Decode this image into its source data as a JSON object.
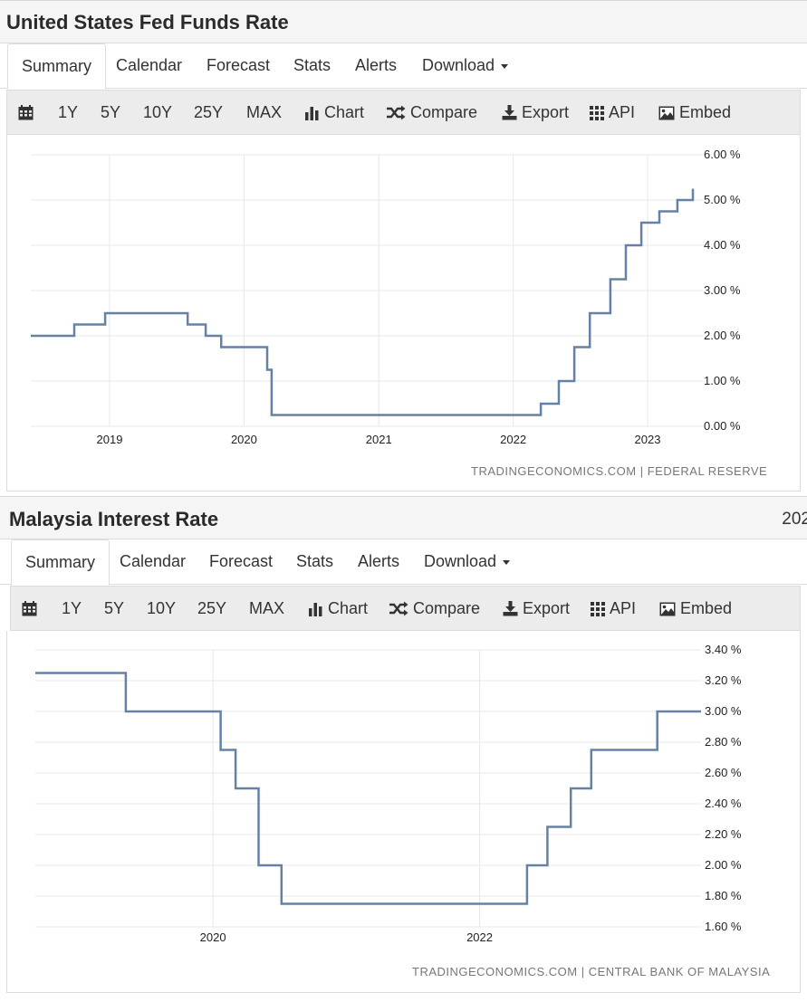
{
  "toolbar": {
    "ranges": [
      "1Y",
      "5Y",
      "10Y",
      "25Y",
      "MAX"
    ],
    "chart_label": "Chart",
    "compare_label": "Compare",
    "export_label": "Export",
    "api_label": "API",
    "embed_label": "Embed"
  },
  "tabs": {
    "summary": "Summary",
    "calendar": "Calendar",
    "forecast": "Forecast",
    "stats": "Stats",
    "alerts": "Alerts",
    "download": "Download"
  },
  "panels": [
    {
      "title": "United States Fed Funds Rate",
      "source": "TRADINGECONOMICS.COM | FEDERAL RESERVE"
    },
    {
      "title": "Malaysia Interest Rate",
      "title_extra": "202",
      "source": "TRADINGECONOMICS.COM | CENTRAL BANK OF MALAYSIA"
    }
  ],
  "colors": {
    "line": "#6582a6",
    "grid": "#e8e8e8"
  },
  "chart_data": [
    {
      "type": "line",
      "title": "United States Fed Funds Rate",
      "x_tick_labels": [
        "2019",
        "2020",
        "2021",
        "2022",
        "2023"
      ],
      "y_tick_labels": [
        "0.00 %",
        "1.00 %",
        "2.00 %",
        "3.00 %",
        "4.00 %",
        "5.00 %",
        "6.00 %"
      ],
      "ylim": [
        0,
        6
      ],
      "xlim": [
        "2018-06-01",
        "2023-05-31"
      ],
      "grid": true,
      "step": true,
      "series": [
        {
          "points": [
            [
              "2018-06-01",
              2.0
            ],
            [
              "2018-09-27",
              2.25
            ],
            [
              "2018-12-20",
              2.5
            ],
            [
              "2019-08-01",
              2.25
            ],
            [
              "2019-09-19",
              2.0
            ],
            [
              "2019-10-31",
              1.75
            ],
            [
              "2020-03-04",
              1.25
            ],
            [
              "2020-03-16",
              0.25
            ],
            [
              "2022-03-17",
              0.5
            ],
            [
              "2022-05-05",
              1.0
            ],
            [
              "2022-06-16",
              1.75
            ],
            [
              "2022-07-28",
              2.5
            ],
            [
              "2022-09-22",
              3.25
            ],
            [
              "2022-11-03",
              4.0
            ],
            [
              "2022-12-15",
              4.5
            ],
            [
              "2023-02-02",
              4.75
            ],
            [
              "2023-03-23",
              5.0
            ],
            [
              "2023-05-04",
              5.25
            ]
          ]
        }
      ]
    },
    {
      "type": "line",
      "title": "Malaysia Interest Rate",
      "x_tick_labels": [
        "2020",
        "2022"
      ],
      "y_tick_labels": [
        "1.60 %",
        "1.80 %",
        "2.00 %",
        "2.20 %",
        "2.40 %",
        "2.60 %",
        "2.80 %",
        "3.00 %",
        "3.20 %",
        "3.40 %"
      ],
      "ylim": [
        1.6,
        3.4
      ],
      "xlim": [
        "2018-09-01",
        "2023-08-31"
      ],
      "grid": true,
      "step": true,
      "series": [
        {
          "points": [
            [
              "2018-09-01",
              3.25
            ],
            [
              "2019-05-07",
              3.0
            ],
            [
              "2020-01-22",
              2.75
            ],
            [
              "2020-03-03",
              2.5
            ],
            [
              "2020-05-05",
              2.0
            ],
            [
              "2020-07-07",
              1.75
            ],
            [
              "2022-05-11",
              2.0
            ],
            [
              "2022-07-06",
              2.25
            ],
            [
              "2022-09-08",
              2.5
            ],
            [
              "2022-11-03",
              2.75
            ],
            [
              "2023-05-03",
              3.0
            ],
            [
              "2023-08-31",
              3.0
            ]
          ]
        }
      ]
    }
  ]
}
